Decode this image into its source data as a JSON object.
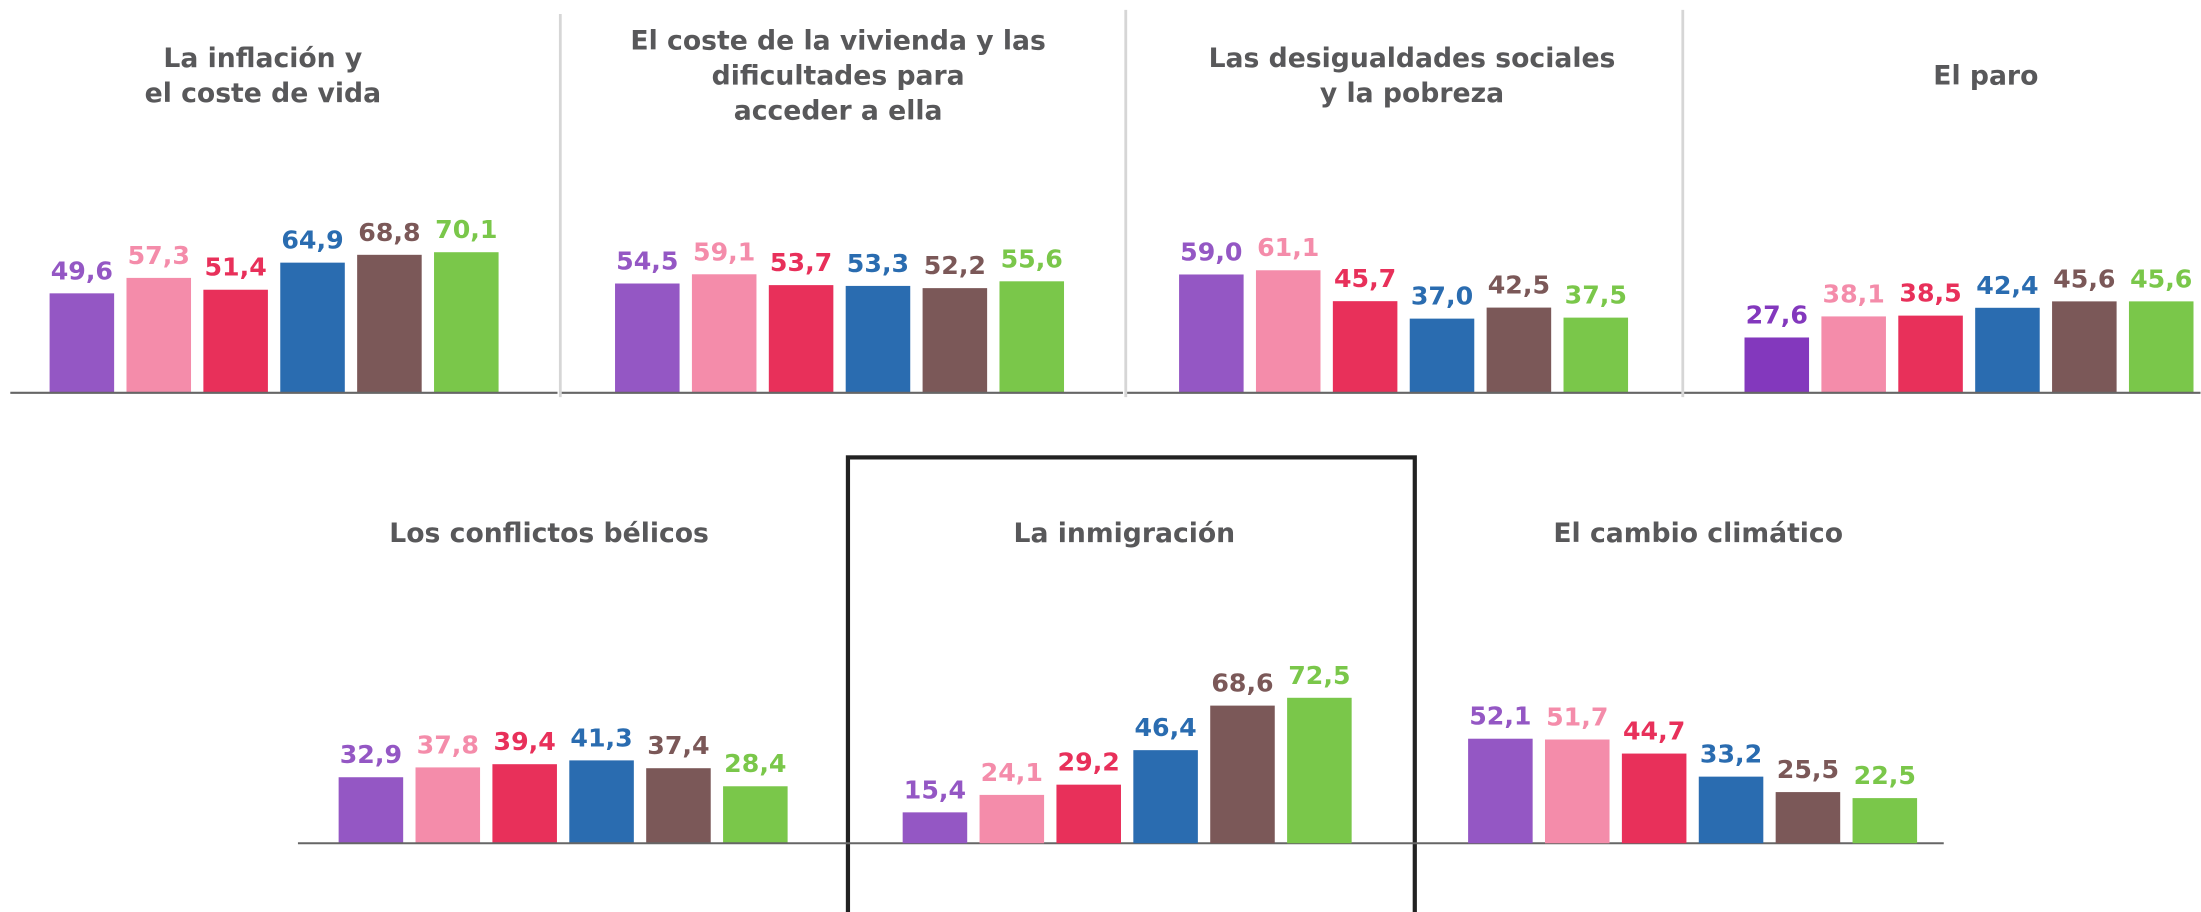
{
  "chart_data": [
    {
      "type": "bar",
      "title": [
        "La inflación y",
        "el coste de vida"
      ],
      "categories": [
        null,
        null,
        null,
        null,
        null,
        null
      ],
      "values": [
        49.6,
        57.3,
        51.4,
        64.9,
        68.8,
        70.1
      ],
      "value_labels": [
        "49,6",
        "57,3",
        "51,4",
        "64,9",
        "68,8",
        "70,1"
      ],
      "colors": [
        "#9457c4",
        "#f48caa",
        "#e8305a",
        "#2a6cb0",
        "#7b5858",
        "#7ac74a"
      ]
    },
    {
      "type": "bar",
      "title": [
        "El coste de la vivienda y las",
        "dificultades para",
        "acceder a ella"
      ],
      "categories": [
        null,
        null,
        null,
        null,
        null,
        null
      ],
      "values": [
        54.5,
        59.1,
        53.7,
        53.3,
        52.2,
        55.6
      ],
      "value_labels": [
        "54,5",
        "59,1",
        "53,7",
        "53,3",
        "52,2",
        "55,6"
      ],
      "colors": [
        "#9457c4",
        "#f48caa",
        "#e8305a",
        "#2a6cb0",
        "#7b5858",
        "#7ac74a"
      ]
    },
    {
      "type": "bar",
      "title": [
        "Las desigualdades sociales",
        "y la pobreza"
      ],
      "categories": [
        null,
        null,
        null,
        null,
        null,
        null
      ],
      "values": [
        59.0,
        61.1,
        45.7,
        37.0,
        42.5,
        37.5
      ],
      "value_labels": [
        "59,0",
        "61,1",
        "45,7",
        "37,0",
        "42,5",
        "37,5"
      ],
      "colors": [
        "#9457c4",
        "#f48caa",
        "#e8305a",
        "#2a6cb0",
        "#7b5858",
        "#7ac74a"
      ]
    },
    {
      "type": "bar",
      "title": [
        "El paro"
      ],
      "categories": [
        null,
        null,
        null,
        null,
        null,
        null
      ],
      "values": [
        27.6,
        38.1,
        38.5,
        42.4,
        45.6,
        45.6
      ],
      "value_labels": [
        "27,6",
        "38,1",
        "38,5",
        "42,4",
        "45,6",
        "45,6"
      ],
      "colors": [
        "#8338bd",
        "#f48caa",
        "#e8305a",
        "#2a6cb0",
        "#7b5858",
        "#7ac74a"
      ]
    },
    {
      "type": "bar",
      "title": [
        "Los conflictos bélicos"
      ],
      "categories": [
        null,
        null,
        null,
        null,
        null,
        null
      ],
      "values": [
        32.9,
        37.8,
        39.4,
        41.3,
        37.4,
        28.4
      ],
      "value_labels": [
        "32,9",
        "37,8",
        "39,4",
        "41,3",
        "37,4",
        "28,4"
      ],
      "colors": [
        "#9457c4",
        "#f48caa",
        "#e8305a",
        "#2a6cb0",
        "#7b5858",
        "#7ac74a"
      ]
    },
    {
      "type": "bar",
      "title": [
        "La inmigración"
      ],
      "categories": [
        null,
        null,
        null,
        null,
        null,
        null
      ],
      "values": [
        15.4,
        24.1,
        29.2,
        46.4,
        68.6,
        72.5
      ],
      "value_labels": [
        "15,4",
        "24,1",
        "29,2",
        "46,4",
        "68,6",
        "72,5"
      ],
      "colors": [
        "#9457c4",
        "#f48caa",
        "#e8305a",
        "#2a6cb0",
        "#7b5858",
        "#7ac74a"
      ]
    },
    {
      "type": "bar",
      "title": [
        "El cambio climático"
      ],
      "categories": [
        null,
        null,
        null,
        null,
        null,
        null
      ],
      "values": [
        52.1,
        51.7,
        44.7,
        33.2,
        25.5,
        22.5
      ],
      "value_labels": [
        "52,1",
        "51,7",
        "44,7",
        "33,2",
        "25,5",
        "22,5"
      ],
      "colors": [
        "#9457c4",
        "#f48caa",
        "#e8305a",
        "#2a6cb0",
        "#7b5858",
        "#7ac74a"
      ]
    }
  ]
}
